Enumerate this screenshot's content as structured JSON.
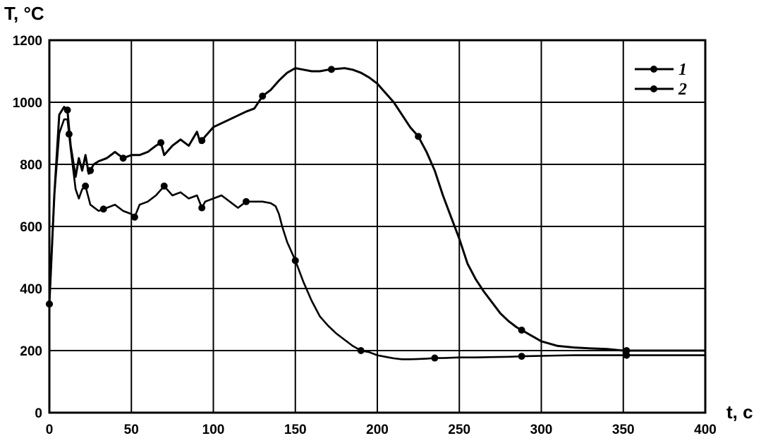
{
  "chart_data": {
    "type": "line",
    "xlabel": "t, c",
    "ylabel": "T, °C",
    "xlim": [
      0,
      400
    ],
    "ylim": [
      0,
      1200
    ],
    "xticks": [
      "0",
      "50",
      "100",
      "150",
      "200",
      "250",
      "300",
      "350",
      "400"
    ],
    "yticks": [
      "0",
      "200",
      "400",
      "600",
      "800",
      "1000",
      "1200"
    ],
    "grid": true,
    "legend_position": "top-right",
    "colors": {
      "line": "#000000",
      "grid": "#000000",
      "background": "#ffffff"
    },
    "series": [
      {
        "name": "1",
        "points": [
          [
            0,
            350
          ],
          [
            3,
            700
          ],
          [
            6,
            960
          ],
          [
            9,
            985
          ],
          [
            11,
            975
          ],
          [
            13,
            860
          ],
          [
            16,
            760
          ],
          [
            18,
            820
          ],
          [
            20,
            780
          ],
          [
            22,
            830
          ],
          [
            24,
            770
          ],
          [
            27,
            800
          ],
          [
            30,
            810
          ],
          [
            35,
            820
          ],
          [
            40,
            840
          ],
          [
            45,
            820
          ],
          [
            50,
            830
          ],
          [
            55,
            830
          ],
          [
            60,
            840
          ],
          [
            65,
            860
          ],
          [
            68,
            870
          ],
          [
            70,
            830
          ],
          [
            75,
            860
          ],
          [
            80,
            880
          ],
          [
            85,
            860
          ],
          [
            90,
            905
          ],
          [
            92,
            870
          ],
          [
            95,
            890
          ],
          [
            100,
            920
          ],
          [
            110,
            945
          ],
          [
            120,
            970
          ],
          [
            125,
            980
          ],
          [
            130,
            1020
          ],
          [
            135,
            1040
          ],
          [
            140,
            1070
          ],
          [
            145,
            1095
          ],
          [
            150,
            1110
          ],
          [
            155,
            1105
          ],
          [
            160,
            1100
          ],
          [
            165,
            1100
          ],
          [
            170,
            1105
          ],
          [
            180,
            1110
          ],
          [
            185,
            1105
          ],
          [
            190,
            1095
          ],
          [
            195,
            1080
          ],
          [
            200,
            1060
          ],
          [
            205,
            1030
          ],
          [
            210,
            1000
          ],
          [
            215,
            960
          ],
          [
            220,
            920
          ],
          [
            225,
            890
          ],
          [
            230,
            840
          ],
          [
            235,
            780
          ],
          [
            240,
            700
          ],
          [
            245,
            630
          ],
          [
            250,
            560
          ],
          [
            255,
            480
          ],
          [
            260,
            430
          ],
          [
            265,
            390
          ],
          [
            270,
            355
          ],
          [
            275,
            320
          ],
          [
            280,
            295
          ],
          [
            285,
            275
          ],
          [
            290,
            260
          ],
          [
            295,
            245
          ],
          [
            300,
            230
          ],
          [
            310,
            215
          ],
          [
            320,
            210
          ],
          [
            330,
            207
          ],
          [
            340,
            205
          ],
          [
            350,
            200
          ],
          [
            360,
            200
          ],
          [
            370,
            200
          ],
          [
            380,
            200
          ],
          [
            390,
            200
          ],
          [
            400,
            200
          ]
        ],
        "markers_x": [
          0,
          11,
          25,
          45,
          68,
          93,
          130,
          172,
          225,
          288,
          352
        ]
      },
      {
        "name": "2",
        "points": [
          [
            0,
            350
          ],
          [
            3,
            700
          ],
          [
            6,
            900
          ],
          [
            9,
            945
          ],
          [
            11,
            945
          ],
          [
            13,
            850
          ],
          [
            16,
            720
          ],
          [
            18,
            690
          ],
          [
            20,
            720
          ],
          [
            22,
            730
          ],
          [
            25,
            670
          ],
          [
            30,
            650
          ],
          [
            35,
            660
          ],
          [
            40,
            670
          ],
          [
            45,
            650
          ],
          [
            50,
            640
          ],
          [
            52,
            630
          ],
          [
            55,
            670
          ],
          [
            60,
            680
          ],
          [
            65,
            700
          ],
          [
            70,
            730
          ],
          [
            75,
            700
          ],
          [
            80,
            710
          ],
          [
            85,
            690
          ],
          [
            90,
            700
          ],
          [
            93,
            660
          ],
          [
            95,
            680
          ],
          [
            100,
            690
          ],
          [
            105,
            700
          ],
          [
            110,
            680
          ],
          [
            115,
            660
          ],
          [
            120,
            680
          ],
          [
            125,
            680
          ],
          [
            130,
            680
          ],
          [
            135,
            675
          ],
          [
            138,
            665
          ],
          [
            140,
            640
          ],
          [
            142,
            600
          ],
          [
            145,
            550
          ],
          [
            150,
            490
          ],
          [
            155,
            420
          ],
          [
            160,
            360
          ],
          [
            165,
            310
          ],
          [
            170,
            280
          ],
          [
            175,
            255
          ],
          [
            180,
            235
          ],
          [
            185,
            215
          ],
          [
            190,
            200
          ],
          [
            195,
            195
          ],
          [
            200,
            185
          ],
          [
            205,
            180
          ],
          [
            210,
            175
          ],
          [
            215,
            172
          ],
          [
            220,
            172
          ],
          [
            225,
            173
          ],
          [
            230,
            174
          ],
          [
            235,
            176
          ],
          [
            240,
            176
          ],
          [
            250,
            178
          ],
          [
            260,
            178
          ],
          [
            270,
            179
          ],
          [
            280,
            180
          ],
          [
            290,
            182
          ],
          [
            300,
            183
          ],
          [
            310,
            184
          ],
          [
            320,
            185
          ],
          [
            330,
            185
          ],
          [
            340,
            185
          ],
          [
            350,
            185
          ],
          [
            360,
            185
          ],
          [
            370,
            185
          ],
          [
            380,
            185
          ],
          [
            390,
            185
          ],
          [
            400,
            185
          ]
        ],
        "markers_x": [
          0,
          12,
          22,
          33,
          52,
          70,
          93,
          120,
          150,
          190,
          235,
          288,
          352
        ]
      }
    ]
  }
}
